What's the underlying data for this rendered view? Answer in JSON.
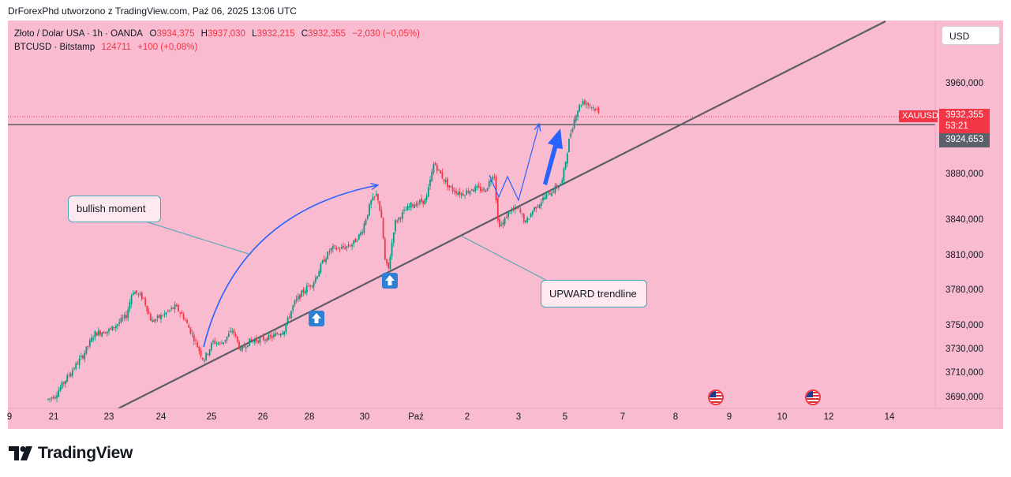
{
  "header": {
    "attribution": "DrForexPhd utworzono z TradingView.com, Paź 06, 2025 13:06 UTC"
  },
  "legend": {
    "line1_symbol": "Złoto / Dolar USA · 1h · OANDA",
    "o_label": "O",
    "o_value": "3934,375",
    "h_label": "H",
    "h_value": "3937,030",
    "l_label": "L",
    "l_value": "3932,215",
    "c_label": "C",
    "c_value": "3932,355",
    "change": "−2,030 (−0,05%)",
    "line2_symbol": "BTCUSD · Bitstamp",
    "btc_value": "124711",
    "btc_change": "+100 (+0,08%)"
  },
  "currency_button": "USD",
  "price_axis": {
    "labels": [
      "3960,000",
      "3880,000",
      "3840,000",
      "3810,000",
      "3780,000",
      "3750,000",
      "3730,000",
      "3710,000",
      "3690,000"
    ]
  },
  "time_axis": {
    "labels": [
      "9",
      "21",
      "23",
      "24",
      "25",
      "26",
      "28",
      "30",
      "Paź",
      "2",
      "3",
      "5",
      "7",
      "8",
      "9",
      "10",
      "12",
      "14"
    ]
  },
  "tags": {
    "symbol_tag": "XAUUSD",
    "last_price": "3932,355",
    "countdown": "53:21",
    "level_price": "3924,653"
  },
  "annotations": {
    "bullish_callout": "bullish moment",
    "trendline_callout": "UPWARD trendline"
  },
  "brand": {
    "logo_text": "TradingView"
  },
  "colors": {
    "background": "#f8bbd0",
    "up_candle": "#089981",
    "down_candle": "#f23645",
    "trendline": "#5d5d66",
    "arrow": "#2962ff",
    "last_price_tag": "#f23645",
    "level_tag": "#5d606b"
  },
  "chart_data": {
    "type": "candlestick",
    "symbol": "Złoto / Dolar USA · 1h · OANDA",
    "x": [
      "21",
      "23",
      "24",
      "25",
      "26",
      "28",
      "30",
      "Paź",
      "2",
      "3",
      "5"
    ],
    "close": [
      3688,
      3778,
      3760,
      3735,
      3745,
      3800,
      3858,
      3820,
      3865,
      3855,
      3932
    ],
    "last_close": 3932.355,
    "horizontal_level": 3924.653,
    "ylim": [
      3683,
      3985
    ],
    "tick_labels_y": [
      3960,
      3880,
      3840,
      3810,
      3780,
      3750,
      3730,
      3710,
      3690
    ]
  }
}
